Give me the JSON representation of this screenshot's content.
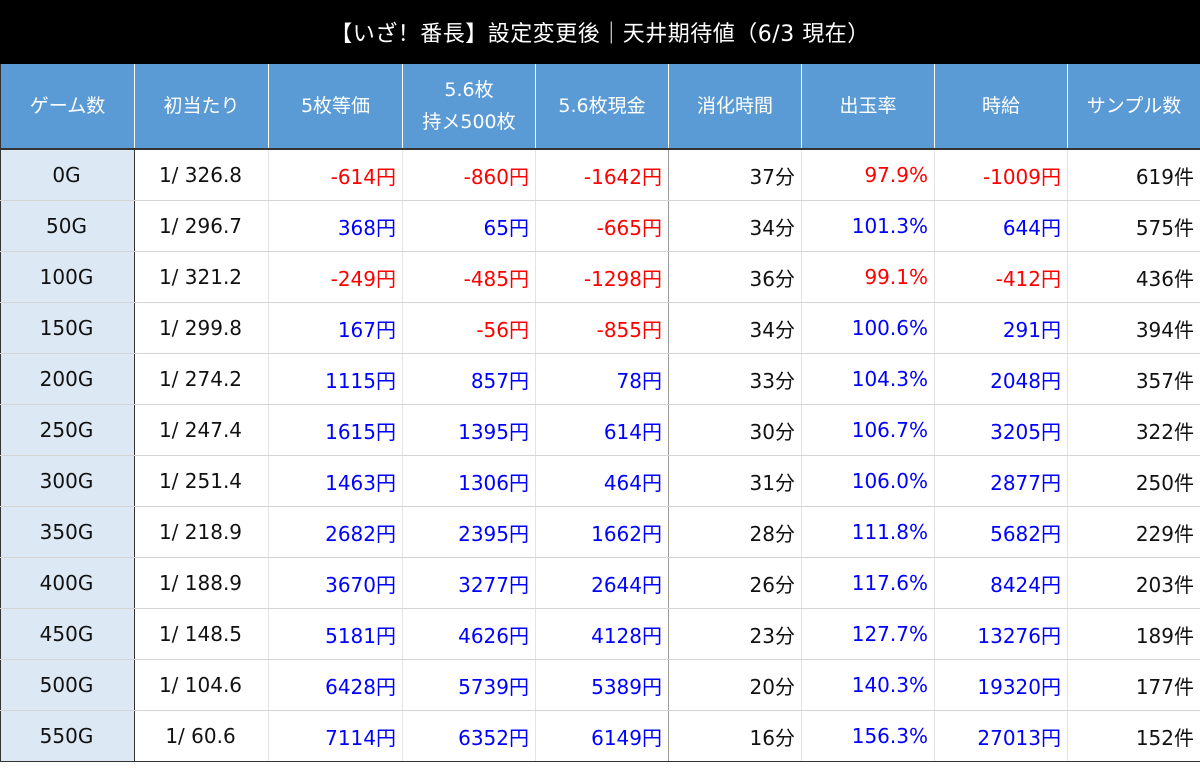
{
  "title": "【いざ！番長】設定変更後｜天井期待値（6/3 現在）",
  "colors": {
    "header_bg": "#5b9bd5",
    "games_col_bg": "#dce9f4",
    "negative": "#ff0000",
    "positive": "#0000ff"
  },
  "headers": {
    "games": "ゲーム数",
    "first_hit": "初当たり",
    "equal_rate_line1": "5枚等価",
    "ratio_held_line1": "5.6枚",
    "ratio_held_line2": "持メ500枚",
    "ratio_cash": "5.6枚現金",
    "time": "消化時間",
    "payout": "出玉率",
    "hourly": "時給",
    "samples": "サンプル数"
  },
  "rows": [
    {
      "games": "0G",
      "first_hit": "1/ 326.8",
      "eq5": "-614円",
      "held56": "-860円",
      "cash56": "-1642円",
      "time": "37分",
      "payout": "97.9%",
      "hourly": "-1009円",
      "samples": "619件"
    },
    {
      "games": "50G",
      "first_hit": "1/ 296.7",
      "eq5": "368円",
      "held56": "65円",
      "cash56": "-665円",
      "time": "34分",
      "payout": "101.3%",
      "hourly": "644円",
      "samples": "575件"
    },
    {
      "games": "100G",
      "first_hit": "1/ 321.2",
      "eq5": "-249円",
      "held56": "-485円",
      "cash56": "-1298円",
      "time": "36分",
      "payout": "99.1%",
      "hourly": "-412円",
      "samples": "436件"
    },
    {
      "games": "150G",
      "first_hit": "1/ 299.8",
      "eq5": "167円",
      "held56": "-56円",
      "cash56": "-855円",
      "time": "34分",
      "payout": "100.6%",
      "hourly": "291円",
      "samples": "394件"
    },
    {
      "games": "200G",
      "first_hit": "1/ 274.2",
      "eq5": "1115円",
      "held56": "857円",
      "cash56": "78円",
      "time": "33分",
      "payout": "104.3%",
      "hourly": "2048円",
      "samples": "357件"
    },
    {
      "games": "250G",
      "first_hit": "1/ 247.4",
      "eq5": "1615円",
      "held56": "1395円",
      "cash56": "614円",
      "time": "30分",
      "payout": "106.7%",
      "hourly": "3205円",
      "samples": "322件"
    },
    {
      "games": "300G",
      "first_hit": "1/ 251.4",
      "eq5": "1463円",
      "held56": "1306円",
      "cash56": "464円",
      "time": "31分",
      "payout": "106.0%",
      "hourly": "2877円",
      "samples": "250件"
    },
    {
      "games": "350G",
      "first_hit": "1/ 218.9",
      "eq5": "2682円",
      "held56": "2395円",
      "cash56": "1662円",
      "time": "28分",
      "payout": "111.8%",
      "hourly": "5682円",
      "samples": "229件"
    },
    {
      "games": "400G",
      "first_hit": "1/ 188.9",
      "eq5": "3670円",
      "held56": "3277円",
      "cash56": "2644円",
      "time": "26分",
      "payout": "117.6%",
      "hourly": "8424円",
      "samples": "203件"
    },
    {
      "games": "450G",
      "first_hit": "1/ 148.5",
      "eq5": "5181円",
      "held56": "4626円",
      "cash56": "4128円",
      "time": "23分",
      "payout": "127.7%",
      "hourly": "13276円",
      "samples": "189件"
    },
    {
      "games": "500G",
      "first_hit": "1/ 104.6",
      "eq5": "6428円",
      "held56": "5739円",
      "cash56": "5389円",
      "time": "20分",
      "payout": "140.3%",
      "hourly": "19320円",
      "samples": "177件"
    },
    {
      "games": "550G",
      "first_hit": "1/ 60.6",
      "eq5": "7114円",
      "held56": "6352円",
      "cash56": "6149円",
      "time": "16分",
      "payout": "156.3%",
      "hourly": "27013円",
      "samples": "152件"
    }
  ]
}
